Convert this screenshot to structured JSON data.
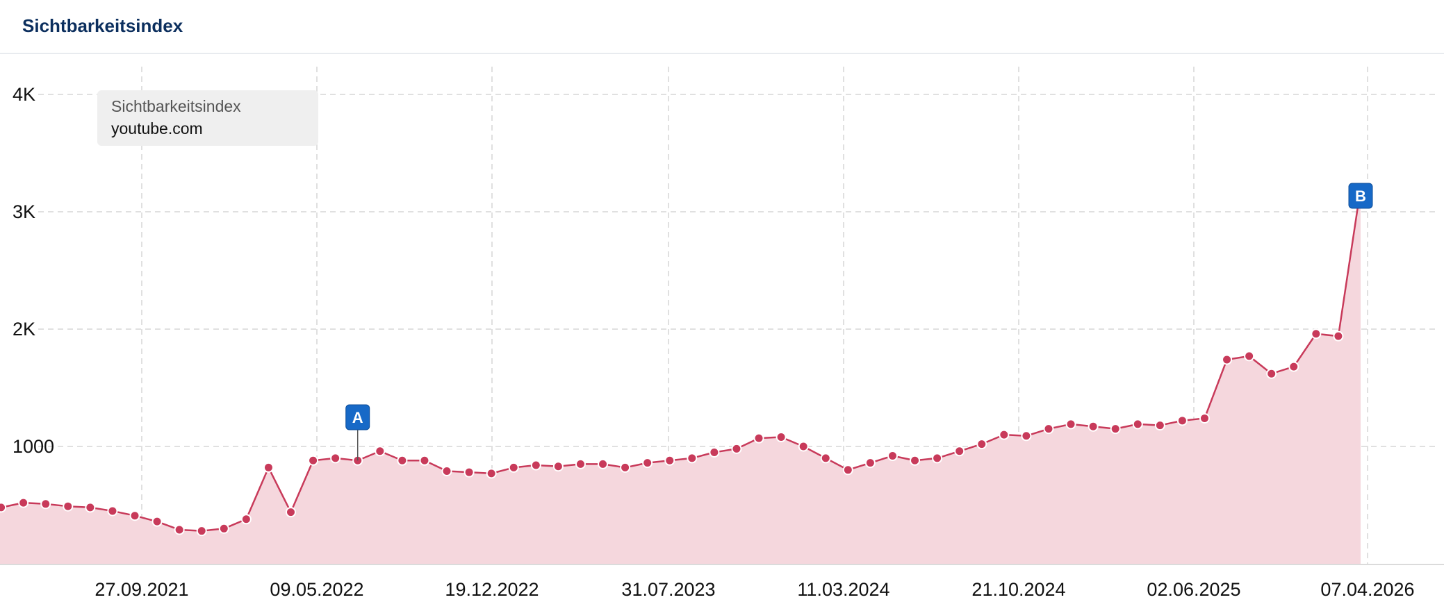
{
  "header": {
    "title": "Sichtbarkeitsindex"
  },
  "tooltip": {
    "title": "Sichtbarkeitsindex",
    "domain": "youtube.com"
  },
  "colors": {
    "line": "#c83a5a",
    "area": "#f5d7dd",
    "dot": "#c83a5a",
    "grid": "#d6d6d6",
    "marker": "#1769c7",
    "title": "#0c2f5e"
  },
  "chart_data": {
    "type": "area",
    "title": "Sichtbarkeitsindex",
    "series": [
      {
        "name": "youtube.com",
        "x": [
          "2021-02",
          "2021-03",
          "2021-04",
          "2021-05",
          "2021-06",
          "2021-07",
          "2021-08",
          "2021-09",
          "2021-10",
          "2021-11",
          "2021-12",
          "2022-01",
          "2022-02",
          "2022-03",
          "2022-04",
          "2022-05",
          "2022-06",
          "2022-07",
          "2022-08",
          "2022-09",
          "2022-10",
          "2022-11",
          "2022-12",
          "2023-01",
          "2023-02",
          "2023-03",
          "2023-04",
          "2023-05",
          "2023-06",
          "2023-07",
          "2023-08",
          "2023-09",
          "2023-10",
          "2023-11",
          "2023-12",
          "2024-01",
          "2024-02",
          "2024-03",
          "2024-04",
          "2024-05",
          "2024-06",
          "2024-07",
          "2024-08",
          "2024-09",
          "2024-10",
          "2024-11",
          "2024-12",
          "2025-01",
          "2025-02",
          "2025-03",
          "2025-04",
          "2025-05",
          "2025-06",
          "2025-07",
          "2025-08",
          "2025-09",
          "2025-10",
          "2025-11",
          "2025-12",
          "2026-01",
          "2026-02",
          "2026-03",
          "2026-04"
        ],
        "values": [
          410,
          480,
          520,
          510,
          490,
          480,
          450,
          410,
          360,
          290,
          280,
          300,
          380,
          820,
          440,
          880,
          900,
          880,
          960,
          880,
          880,
          790,
          780,
          770,
          820,
          840,
          830,
          850,
          850,
          820,
          860,
          880,
          900,
          950,
          980,
          1070,
          1080,
          1000,
          900,
          800,
          860,
          920,
          880,
          900,
          960,
          1020,
          1100,
          1090,
          1150,
          1190,
          1170,
          1150,
          1190,
          1180,
          1220,
          1240,
          1740,
          1770,
          1620,
          1680,
          1960,
          1940,
          3200
        ]
      }
    ],
    "x_tick_labels": [
      "27.09.2021",
      "09.05.2022",
      "19.12.2022",
      "31.07.2023",
      "11.03.2024",
      "21.10.2024",
      "02.06.2025",
      "07.04.2026"
    ],
    "y_tick_labels": [
      "1000",
      "2K",
      "3K",
      "4K"
    ],
    "ylim": [
      0,
      4200
    ],
    "grid": true,
    "legend": "top-left",
    "annotations": [
      {
        "label": "A",
        "x": "2022-07"
      },
      {
        "label": "B",
        "x": "2026-04"
      }
    ]
  }
}
